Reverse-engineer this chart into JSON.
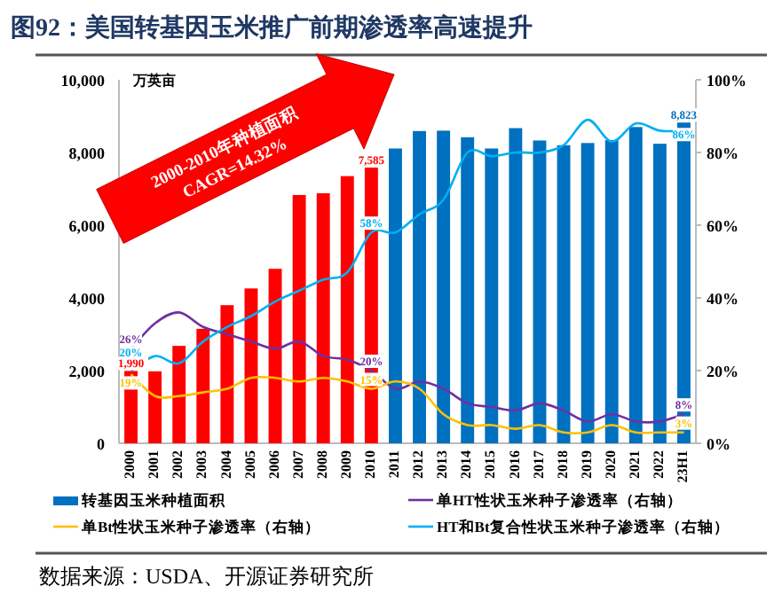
{
  "chart_data": {
    "type": "bar",
    "title": "图92：美国转基因玉米推广前期渗透率高速提升",
    "ylabel": "万英亩",
    "categories": [
      "2000",
      "2001",
      "2002",
      "2003",
      "2004",
      "2005",
      "2006",
      "2007",
      "2008",
      "2009",
      "2010",
      "2011",
      "2012",
      "2013",
      "2014",
      "2015",
      "2016",
      "2017",
      "2018",
      "2019",
      "2020",
      "2021",
      "2022",
      "23H1"
    ],
    "series": [
      {
        "name": "转基因玉米种植面积",
        "type": "bar",
        "color": "#0070c0",
        "colors": [
          "#ff0000",
          "#ff0000",
          "#ff0000",
          "#ff0000",
          "#ff0000",
          "#ff0000",
          "#ff0000",
          "#ff0000",
          "#ff0000",
          "#ff0000",
          "#ff0000",
          "#0070c0",
          "#0070c0",
          "#0070c0",
          "#0070c0",
          "#0070c0",
          "#0070c0",
          "#0070c0",
          "#0070c0",
          "#0070c0",
          "#0070c0",
          "#0070c0",
          "#0070c0",
          "#0070c0"
        ],
        "values": [
          1990,
          1980,
          2680,
          3150,
          3800,
          4260,
          4800,
          6830,
          6880,
          7350,
          7585,
          8110,
          8590,
          8600,
          8420,
          8110,
          8670,
          8330,
          8200,
          8260,
          8340,
          8700,
          8240,
          8823
        ],
        "value_labels": [
          "1,990",
          null,
          null,
          null,
          null,
          null,
          null,
          null,
          null,
          null,
          "7,585",
          null,
          null,
          null,
          null,
          null,
          null,
          null,
          null,
          null,
          null,
          null,
          null,
          "8,823"
        ]
      },
      {
        "name": "单HT性状玉米种子渗透率（右轴）",
        "type": "line",
        "axis": "y2",
        "color": "#7030a0",
        "values": [
          26,
          33,
          36,
          32,
          30,
          28,
          26,
          28,
          24,
          23,
          20,
          15,
          17,
          15,
          11,
          10,
          9,
          11,
          9,
          6,
          8,
          6,
          6,
          8
        ],
        "value_labels": [
          "26%",
          null,
          null,
          null,
          null,
          null,
          null,
          null,
          null,
          null,
          "20%",
          null,
          null,
          null,
          null,
          null,
          null,
          null,
          null,
          null,
          null,
          null,
          null,
          "8%"
        ]
      },
      {
        "name": "单Bt性状玉米种子渗透率（右轴）",
        "type": "line",
        "axis": "y2",
        "color": "#ffc000",
        "values": [
          19,
          13,
          13,
          14,
          15,
          18,
          18,
          17,
          18,
          17,
          15,
          17,
          15,
          8,
          5,
          5,
          4,
          5,
          3,
          3,
          5,
          3,
          3,
          3
        ],
        "value_labels": [
          "19%",
          null,
          null,
          null,
          null,
          null,
          null,
          null,
          null,
          null,
          "15%",
          null,
          null,
          null,
          null,
          null,
          null,
          null,
          null,
          null,
          null,
          null,
          null,
          "3%"
        ]
      },
      {
        "name": "HT和Bt复合性状玉米种子渗透率（右轴）",
        "type": "line",
        "axis": "y2",
        "color": "#00b0f0",
        "values": [
          20,
          24,
          22,
          28,
          32,
          35,
          39,
          42,
          45,
          47,
          58,
          58,
          63,
          67,
          80,
          79,
          80,
          80,
          82,
          89,
          83,
          88,
          86,
          86
        ],
        "value_labels": [
          "20%",
          null,
          null,
          null,
          null,
          null,
          null,
          null,
          null,
          null,
          "58%",
          null,
          null,
          null,
          null,
          null,
          null,
          null,
          null,
          null,
          null,
          null,
          null,
          "86%"
        ]
      }
    ],
    "ylim": [
      0,
      10000
    ],
    "yticks": [
      {
        "value": 0,
        "label": "0"
      },
      {
        "value": 2000,
        "label": "2,000"
      },
      {
        "value": 4000,
        "label": "4,000"
      },
      {
        "value": 6000,
        "label": "6,000"
      },
      {
        "value": 8000,
        "label": "8,000"
      },
      {
        "value": 10000,
        "label": "10,000"
      }
    ],
    "y2lim": [
      0,
      100
    ],
    "y2ticks": [
      {
        "value": 0,
        "label": "0%"
      },
      {
        "value": 20,
        "label": "20%"
      },
      {
        "value": 40,
        "label": "40%"
      },
      {
        "value": 60,
        "label": "60%"
      },
      {
        "value": 80,
        "label": "80%"
      },
      {
        "value": 100,
        "label": "100%"
      }
    ],
    "grid": false,
    "legend": "bottom",
    "annotations": [
      "2000-2010年种植面积",
      "CAGR=14.32%",
      "数据来源：USDA、开源证券研究所"
    ]
  }
}
